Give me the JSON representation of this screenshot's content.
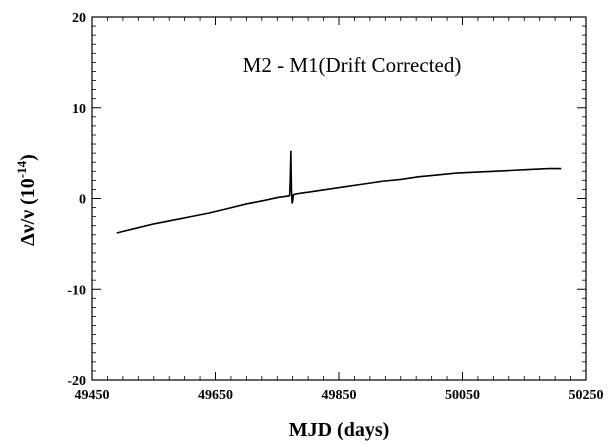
{
  "chart_data": {
    "type": "line",
    "title": "M2 - M1(Drift Corrected)",
    "xlabel": "MJD (days)",
    "ylabel": "Δν/ν (10",
    "ylabel_exponent": "-14",
    "ylabel_close": ")",
    "xlim": [
      49450,
      50250
    ],
    "ylim": [
      -20,
      20
    ],
    "grid": false,
    "x_ticks": [
      49450,
      49650,
      49850,
      50050,
      50250
    ],
    "y_ticks": [
      -20,
      -10,
      0,
      10,
      20
    ],
    "series": [
      {
        "name": "",
        "color": "#000000",
        "x": [
          49490,
          49520,
          49550,
          49580,
          49610,
          49640,
          49670,
          49700,
          49730,
          49750,
          49770,
          49771,
          49772,
          49773,
          49774,
          49775,
          49776,
          49780,
          49800,
          49830,
          49860,
          49890,
          49920,
          49950,
          49980,
          50010,
          50040,
          50070,
          50100,
          50130,
          50160,
          50190,
          50210
        ],
        "y": [
          -3.8,
          -3.3,
          -2.8,
          -2.4,
          -2.0,
          -1.6,
          -1.1,
          -0.6,
          -0.2,
          0.1,
          0.3,
          2.0,
          5.2,
          1.0,
          -0.5,
          -0.3,
          0.4,
          0.5,
          0.7,
          1.0,
          1.3,
          1.6,
          1.9,
          2.1,
          2.4,
          2.6,
          2.8,
          2.9,
          3.0,
          3.1,
          3.2,
          3.3,
          3.3
        ]
      }
    ]
  }
}
